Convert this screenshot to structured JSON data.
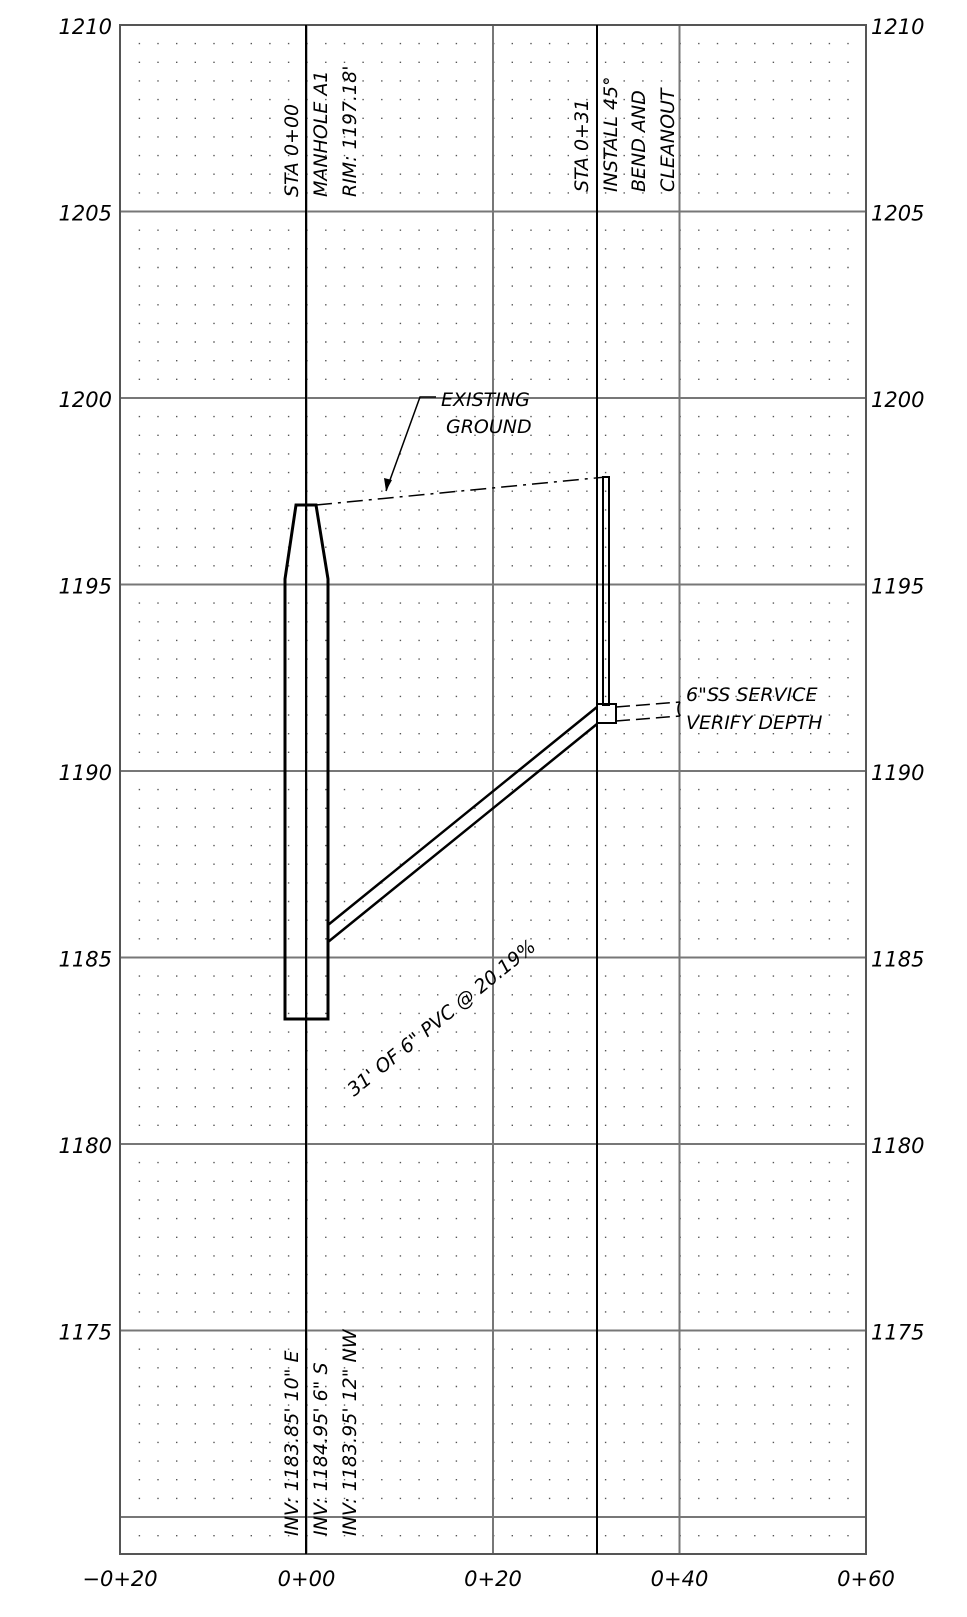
{
  "profile": {
    "y_axis_labels": [
      "1210",
      "1205",
      "1200",
      "1195",
      "1190",
      "1185",
      "1180",
      "1175"
    ],
    "x_axis_labels": [
      "−0+20",
      "0+00",
      "0+20",
      "0+40",
      "0+60"
    ],
    "manhole": {
      "sta": "STA 0+00",
      "name": "MANHOLE A1",
      "rim": "RIM: 1197.18'",
      "inv_e": "INV: 1183.85' 10\" E",
      "inv_s": "INV: 1184.95' 6\" S",
      "inv_nw": "INV: 1183.95' 12\" NW"
    },
    "cleanout": {
      "sta": "STA 0+31",
      "line1": "INSTALL 45°",
      "line2": "BEND AND",
      "line3": "CLEANOUT"
    },
    "existing_ground": {
      "line1": "EXISTING",
      "line2": "GROUND"
    },
    "service": {
      "line1": "6\"SS SERVICE",
      "line2": "VERIFY DEPTH"
    },
    "pipe_label": "31' OF 6\" PVC @ 20.19%"
  }
}
